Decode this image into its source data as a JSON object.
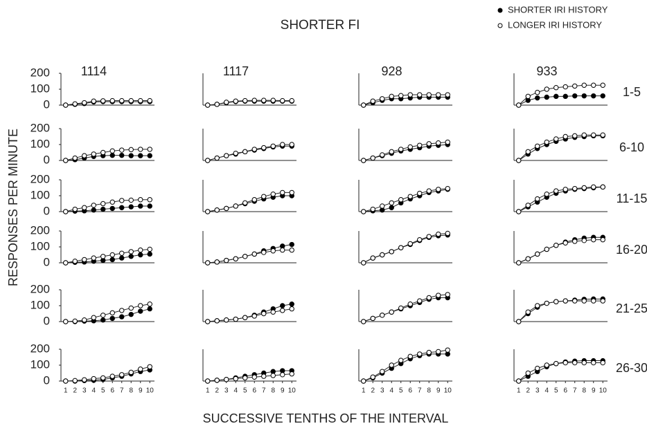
{
  "title": "SHORTER FI",
  "legend": [
    {
      "name": "SHORTER IRI HISTORY",
      "color": "#000000"
    },
    {
      "name": "LONGER IRI HISTORY",
      "color": "#ffffff"
    }
  ],
  "y_label": "RESPONSES PER MINUTE",
  "x_label": "SUCCESSIVE TENTHS OF THE INTERVAL",
  "columns": [
    "1114",
    "1117",
    "928",
    "933"
  ],
  "rows": [
    "1-5",
    "6-10",
    "11-15",
    "16-20",
    "21-25",
    "26-30"
  ],
  "chart_data": [
    {
      "type": "line",
      "x": [
        1,
        2,
        3,
        4,
        5,
        6,
        7,
        8,
        9,
        10
      ],
      "xlim": [
        0.5,
        10.5
      ],
      "ylim": [
        0,
        200
      ],
      "yticks": [
        0,
        100,
        200
      ],
      "series": [
        {
          "values": [
            0,
            5,
            10,
            20,
            22,
            22,
            22,
            22,
            22,
            22
          ]
        },
        {
          "values": [
            0,
            8,
            15,
            25,
            27,
            28,
            28,
            28,
            28,
            28
          ]
        }
      ]
    },
    {
      "type": "line",
      "x": [
        1,
        2,
        3,
        4,
        5,
        6,
        7,
        8,
        9,
        10
      ],
      "xlim": [
        0.5,
        10.5
      ],
      "ylim": [
        0,
        200
      ],
      "series": [
        {
          "values": [
            0,
            5,
            15,
            22,
            25,
            25,
            25,
            25,
            25,
            25
          ]
        },
        {
          "values": [
            0,
            5,
            18,
            25,
            28,
            30,
            30,
            30,
            28,
            28
          ]
        }
      ]
    },
    {
      "type": "line",
      "x": [
        1,
        2,
        3,
        4,
        5,
        6,
        7,
        8,
        9,
        10
      ],
      "xlim": [
        0.5,
        10.5
      ],
      "ylim": [
        0,
        200
      ],
      "series": [
        {
          "values": [
            0,
            15,
            30,
            40,
            40,
            45,
            50,
            50,
            50,
            50
          ]
        },
        {
          "values": [
            0,
            25,
            40,
            55,
            60,
            65,
            65,
            65,
            65,
            65
          ]
        }
      ]
    },
    {
      "type": "line",
      "x": [
        1,
        2,
        3,
        4,
        5,
        6,
        7,
        8,
        9,
        10
      ],
      "xlim": [
        0.5,
        10.5
      ],
      "ylim": [
        0,
        200
      ],
      "series": [
        {
          "values": [
            0,
            30,
            45,
            50,
            55,
            55,
            58,
            58,
            58,
            58
          ]
        },
        {
          "values": [
            0,
            55,
            80,
            100,
            110,
            115,
            120,
            125,
            125,
            125
          ]
        }
      ]
    },
    {
      "type": "line",
      "x": [
        1,
        2,
        3,
        4,
        5,
        6,
        7,
        8,
        9,
        10
      ],
      "xlim": [
        0.5,
        10.5
      ],
      "ylim": [
        0,
        200
      ],
      "yticks": [
        0,
        100,
        200
      ],
      "series": [
        {
          "values": [
            0,
            5,
            15,
            25,
            30,
            32,
            32,
            30,
            30,
            30
          ]
        },
        {
          "values": [
            0,
            15,
            30,
            40,
            50,
            60,
            65,
            68,
            70,
            70
          ]
        }
      ]
    },
    {
      "type": "line",
      "x": [
        1,
        2,
        3,
        4,
        5,
        6,
        7,
        8,
        9,
        10
      ],
      "xlim": [
        0.5,
        10.5
      ],
      "ylim": [
        0,
        200
      ],
      "series": [
        {
          "values": [
            0,
            15,
            30,
            40,
            55,
            65,
            75,
            85,
            90,
            90
          ]
        },
        {
          "values": [
            0,
            15,
            30,
            45,
            55,
            70,
            80,
            90,
            100,
            100
          ]
        }
      ]
    },
    {
      "type": "line",
      "x": [
        1,
        2,
        3,
        4,
        5,
        6,
        7,
        8,
        9,
        10
      ],
      "xlim": [
        0.5,
        10.5
      ],
      "ylim": [
        0,
        200
      ],
      "series": [
        {
          "values": [
            0,
            15,
            30,
            45,
            60,
            70,
            80,
            90,
            95,
            100
          ]
        },
        {
          "values": [
            0,
            15,
            35,
            55,
            70,
            85,
            95,
            105,
            110,
            115
          ]
        }
      ]
    },
    {
      "type": "line",
      "x": [
        1,
        2,
        3,
        4,
        5,
        6,
        7,
        8,
        9,
        10
      ],
      "xlim": [
        0.5,
        10.5
      ],
      "ylim": [
        0,
        200
      ],
      "series": [
        {
          "values": [
            0,
            40,
            75,
            100,
            120,
            135,
            145,
            150,
            155,
            155
          ]
        },
        {
          "values": [
            0,
            55,
            90,
            115,
            135,
            150,
            155,
            160,
            160,
            160
          ]
        }
      ]
    },
    {
      "type": "line",
      "x": [
        1,
        2,
        3,
        4,
        5,
        6,
        7,
        8,
        9,
        10
      ],
      "xlim": [
        0.5,
        10.5
      ],
      "ylim": [
        0,
        200
      ],
      "yticks": [
        0,
        100,
        200
      ],
      "series": [
        {
          "values": [
            0,
            3,
            5,
            10,
            15,
            20,
            25,
            30,
            35,
            35
          ]
        },
        {
          "values": [
            0,
            15,
            25,
            40,
            50,
            60,
            70,
            72,
            75,
            75
          ]
        }
      ]
    },
    {
      "type": "line",
      "x": [
        1,
        2,
        3,
        4,
        5,
        6,
        7,
        8,
        9,
        10
      ],
      "xlim": [
        0.5,
        10.5
      ],
      "ylim": [
        0,
        200
      ],
      "series": [
        {
          "values": [
            0,
            10,
            20,
            35,
            50,
            65,
            80,
            90,
            100,
            100
          ]
        },
        {
          "values": [
            0,
            10,
            20,
            35,
            55,
            75,
            95,
            110,
            120,
            120
          ]
        }
      ]
    },
    {
      "type": "line",
      "x": [
        1,
        2,
        3,
        4,
        5,
        6,
        7,
        8,
        9,
        10
      ],
      "xlim": [
        0.5,
        10.5
      ],
      "ylim": [
        0,
        200
      ],
      "series": [
        {
          "values": [
            0,
            5,
            10,
            25,
            55,
            80,
            100,
            120,
            130,
            140
          ]
        },
        {
          "values": [
            0,
            15,
            35,
            55,
            75,
            95,
            115,
            130,
            140,
            145
          ]
        }
      ]
    },
    {
      "type": "line",
      "x": [
        1,
        2,
        3,
        4,
        5,
        6,
        7,
        8,
        9,
        10
      ],
      "xlim": [
        0.5,
        10.5
      ],
      "ylim": [
        0,
        200
      ],
      "series": [
        {
          "values": [
            0,
            30,
            60,
            90,
            115,
            130,
            140,
            145,
            150,
            155
          ]
        },
        {
          "values": [
            0,
            40,
            80,
            110,
            130,
            140,
            145,
            150,
            155,
            155
          ]
        }
      ]
    },
    {
      "type": "line",
      "x": [
        1,
        2,
        3,
        4,
        5,
        6,
        7,
        8,
        9,
        10
      ],
      "xlim": [
        0.5,
        10.5
      ],
      "ylim": [
        0,
        200
      ],
      "yticks": [
        0,
        100,
        200
      ],
      "series": [
        {
          "values": [
            0,
            3,
            5,
            10,
            15,
            20,
            30,
            40,
            50,
            55
          ]
        },
        {
          "values": [
            0,
            10,
            20,
            30,
            40,
            50,
            60,
            70,
            80,
            85
          ]
        }
      ]
    },
    {
      "type": "line",
      "x": [
        1,
        2,
        3,
        4,
        5,
        6,
        7,
        8,
        9,
        10
      ],
      "xlim": [
        0.5,
        10.5
      ],
      "ylim": [
        0,
        200
      ],
      "series": [
        {
          "values": [
            0,
            5,
            15,
            25,
            40,
            55,
            75,
            90,
            105,
            115
          ]
        },
        {
          "values": [
            0,
            5,
            15,
            25,
            40,
            55,
            65,
            75,
            80,
            80
          ]
        }
      ]
    },
    {
      "type": "line",
      "x": [
        1,
        2,
        3,
        4,
        5,
        6,
        7,
        8,
        9,
        10
      ],
      "xlim": [
        0.5,
        10.5
      ],
      "ylim": [
        0,
        200
      ],
      "series": [
        {
          "values": [
            0,
            30,
            50,
            70,
            95,
            115,
            140,
            160,
            170,
            175
          ]
        },
        {
          "values": [
            0,
            30,
            50,
            70,
            95,
            120,
            145,
            165,
            180,
            185
          ]
        }
      ]
    },
    {
      "type": "line",
      "x": [
        1,
        2,
        3,
        4,
        5,
        6,
        7,
        8,
        9,
        10
      ],
      "xlim": [
        0.5,
        10.5
      ],
      "ylim": [
        0,
        200
      ],
      "series": [
        {
          "values": [
            0,
            25,
            55,
            85,
            110,
            130,
            145,
            155,
            160,
            160
          ]
        },
        {
          "values": [
            0,
            25,
            55,
            85,
            110,
            125,
            135,
            140,
            145,
            145
          ]
        }
      ]
    },
    {
      "type": "line",
      "x": [
        1,
        2,
        3,
        4,
        5,
        6,
        7,
        8,
        9,
        10
      ],
      "xlim": [
        0.5,
        10.5
      ],
      "ylim": [
        0,
        200
      ],
      "yticks": [
        0,
        100,
        200
      ],
      "series": [
        {
          "values": [
            0,
            0,
            3,
            5,
            10,
            20,
            30,
            45,
            65,
            80
          ]
        },
        {
          "values": [
            0,
            3,
            10,
            25,
            40,
            55,
            70,
            85,
            100,
            110
          ]
        }
      ]
    },
    {
      "type": "line",
      "x": [
        1,
        2,
        3,
        4,
        5,
        6,
        7,
        8,
        9,
        10
      ],
      "xlim": [
        0.5,
        10.5
      ],
      "ylim": [
        0,
        200
      ],
      "series": [
        {
          "values": [
            0,
            5,
            10,
            15,
            25,
            40,
            60,
            80,
            100,
            110
          ]
        },
        {
          "values": [
            0,
            5,
            10,
            15,
            25,
            35,
            50,
            60,
            70,
            80
          ]
        }
      ]
    },
    {
      "type": "line",
      "x": [
        1,
        2,
        3,
        4,
        5,
        6,
        7,
        8,
        9,
        10
      ],
      "xlim": [
        0.5,
        10.5
      ],
      "ylim": [
        0,
        200
      ],
      "series": [
        {
          "values": [
            0,
            20,
            40,
            60,
            80,
            100,
            120,
            140,
            150,
            150
          ]
        },
        {
          "values": [
            0,
            20,
            40,
            60,
            85,
            110,
            130,
            150,
            165,
            170
          ]
        }
      ]
    },
    {
      "type": "line",
      "x": [
        1,
        2,
        3,
        4,
        5,
        6,
        7,
        8,
        9,
        10
      ],
      "xlim": [
        0.5,
        10.5
      ],
      "ylim": [
        0,
        200
      ],
      "series": [
        {
          "values": [
            0,
            50,
            90,
            115,
            125,
            130,
            135,
            140,
            142,
            142
          ]
        },
        {
          "values": [
            0,
            60,
            100,
            115,
            125,
            130,
            130,
            130,
            130,
            130
          ]
        }
      ]
    },
    {
      "type": "line",
      "x": [
        1,
        2,
        3,
        4,
        5,
        6,
        7,
        8,
        9,
        10
      ],
      "xlim": [
        0.5,
        10.5
      ],
      "ylim": [
        0,
        200
      ],
      "yticks": [
        0,
        100,
        200
      ],
      "xticks": [
        1,
        2,
        3,
        4,
        5,
        6,
        7,
        8,
        9,
        10
      ],
      "series": [
        {
          "values": [
            0,
            0,
            3,
            5,
            10,
            20,
            30,
            45,
            60,
            70
          ]
        },
        {
          "values": [
            0,
            3,
            8,
            15,
            20,
            30,
            40,
            55,
            75,
            90
          ]
        }
      ]
    },
    {
      "type": "line",
      "x": [
        1,
        2,
        3,
        4,
        5,
        6,
        7,
        8,
        9,
        10
      ],
      "xlim": [
        0.5,
        10.5
      ],
      "ylim": [
        0,
        200
      ],
      "xticks": [
        1,
        2,
        3,
        4,
        5,
        6,
        7,
        8,
        9,
        10
      ],
      "series": [
        {
          "values": [
            0,
            5,
            10,
            20,
            30,
            40,
            50,
            60,
            65,
            65
          ]
        },
        {
          "values": [
            0,
            5,
            10,
            15,
            20,
            25,
            30,
            35,
            40,
            45
          ]
        }
      ]
    },
    {
      "type": "line",
      "x": [
        1,
        2,
        3,
        4,
        5,
        6,
        7,
        8,
        9,
        10
      ],
      "xlim": [
        0.5,
        10.5
      ],
      "ylim": [
        0,
        200
      ],
      "xticks": [
        1,
        2,
        3,
        4,
        5,
        6,
        7,
        8,
        9,
        10
      ],
      "series": [
        {
          "values": [
            0,
            20,
            50,
            80,
            110,
            140,
            160,
            170,
            170,
            170
          ]
        },
        {
          "values": [
            0,
            25,
            60,
            100,
            130,
            155,
            170,
            180,
            185,
            195
          ]
        }
      ]
    },
    {
      "type": "line",
      "x": [
        1,
        2,
        3,
        4,
        5,
        6,
        7,
        8,
        9,
        10
      ],
      "xlim": [
        0.5,
        10.5
      ],
      "ylim": [
        0,
        200
      ],
      "xticks": [
        1,
        2,
        3,
        4,
        5,
        6,
        7,
        8,
        9,
        10
      ],
      "series": [
        {
          "values": [
            0,
            30,
            60,
            90,
            110,
            120,
            125,
            128,
            128,
            128
          ]
        },
        {
          "values": [
            0,
            50,
            80,
            100,
            110,
            115,
            115,
            115,
            115,
            115
          ]
        }
      ]
    }
  ]
}
